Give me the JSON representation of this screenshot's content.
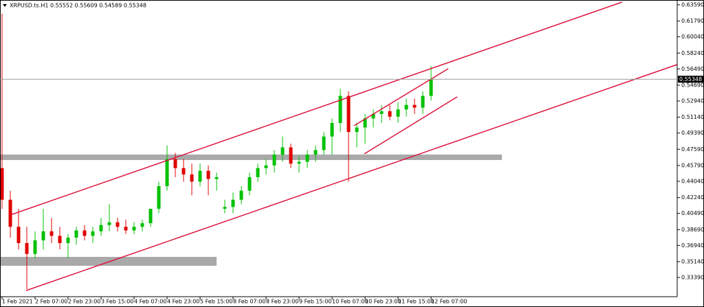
{
  "chart_data": {
    "type": "candlestick",
    "title": "XRPUSD.ts.H1  0.55552 0.55609 0.54589 0.55348",
    "categories": [
      "1 Feb 2021",
      null,
      null,
      null,
      "2 Feb 07:00",
      null,
      null,
      null,
      "2 Feb 23:00",
      null,
      null,
      null,
      "3 Feb 15:00",
      null,
      null,
      null,
      "4 Feb 07:00",
      null,
      null,
      null,
      "4 Feb 23:00",
      null,
      null,
      null,
      "5 Feb 15:00",
      null,
      null,
      null,
      "8 Feb 07:00",
      null,
      null,
      null,
      "8 Feb 23:00",
      null,
      null,
      null,
      "9 Feb 15:00",
      null,
      null,
      null,
      "10 Feb 07:00",
      null,
      null,
      null,
      "10 Feb 23:00",
      null,
      null,
      null,
      "11 Feb 15:00",
      null,
      null,
      null,
      "12 Feb 07:00"
    ],
    "open": [
      0.455,
      0.42,
      0.39,
      0.372,
      0.36,
      0.375,
      0.385,
      0.38,
      0.372,
      0.378,
      0.386,
      0.38,
      0.385,
      0.392,
      0.395,
      0.39,
      0.386,
      0.39,
      0.394,
      0.41,
      0.435,
      0.465,
      0.455,
      0.448,
      0.44,
      0.452,
      0.443,
      0.41,
      0.412,
      0.42,
      0.43,
      0.445,
      0.455,
      0.458,
      0.47,
      0.478,
      0.46,
      0.462,
      0.47,
      0.475,
      0.49,
      0.505,
      0.535,
      0.495,
      0.5,
      0.51,
      0.515,
      0.518,
      0.512,
      0.52,
      0.525,
      0.522,
      0.535
    ],
    "high": [
      0.626,
      0.43,
      0.41,
      0.39,
      0.385,
      0.41,
      0.4,
      0.39,
      0.382,
      0.39,
      0.392,
      0.39,
      0.4,
      0.415,
      0.4,
      0.398,
      0.395,
      0.398,
      0.41,
      0.44,
      0.48,
      0.472,
      0.465,
      0.46,
      0.46,
      0.458,
      0.45,
      0.42,
      0.428,
      0.435,
      0.45,
      0.46,
      0.465,
      0.475,
      0.49,
      0.482,
      0.468,
      0.475,
      0.48,
      0.495,
      0.51,
      0.543,
      0.54,
      0.505,
      0.515,
      0.52,
      0.525,
      0.525,
      0.528,
      0.532,
      0.532,
      0.54,
      0.568
    ],
    "low": [
      0.41,
      0.378,
      0.365,
      0.321,
      0.355,
      0.365,
      0.372,
      0.365,
      0.355,
      0.37,
      0.375,
      0.372,
      0.38,
      0.385,
      0.385,
      0.382,
      0.382,
      0.385,
      0.39,
      0.405,
      0.43,
      0.445,
      0.44,
      0.425,
      0.435,
      0.425,
      0.43,
      0.405,
      0.405,
      0.415,
      0.425,
      0.44,
      0.448,
      0.45,
      0.462,
      0.455,
      0.45,
      0.455,
      0.462,
      0.47,
      0.47,
      0.495,
      0.44,
      0.478,
      0.482,
      0.5,
      0.505,
      0.508,
      0.505,
      0.512,
      0.515,
      0.515,
      0.53
    ],
    "close": [
      0.42,
      0.39,
      0.372,
      0.36,
      0.375,
      0.385,
      0.38,
      0.372,
      0.378,
      0.386,
      0.38,
      0.385,
      0.392,
      0.395,
      0.39,
      0.386,
      0.39,
      0.394,
      0.41,
      0.435,
      0.465,
      0.455,
      0.448,
      0.44,
      0.452,
      0.443,
      0.445,
      0.412,
      0.42,
      0.43,
      0.445,
      0.455,
      0.458,
      0.47,
      0.478,
      0.46,
      0.462,
      0.47,
      0.475,
      0.49,
      0.505,
      0.535,
      0.495,
      0.5,
      0.51,
      0.515,
      0.518,
      0.512,
      0.52,
      0.525,
      0.522,
      0.535,
      0.55348
    ],
    "up_color": "#00c000",
    "down_color": "#e00000",
    "current_price": 0.55348,
    "ylim": [
      0.3126,
      0.6412
    ],
    "yticks": [
      {
        "value": 0.6359,
        "label": "0.63590"
      },
      {
        "value": 0.6179,
        "label": "0.61790"
      },
      {
        "value": 0.6004,
        "label": "0.60040"
      },
      {
        "value": 0.5824,
        "label": "0.58240"
      },
      {
        "value": 0.5649,
        "label": "0.56490"
      },
      {
        "value": 0.5469,
        "label": "0.54690"
      },
      {
        "value": 0.5294,
        "label": "0.52940"
      },
      {
        "value": 0.5114,
        "label": "0.51140"
      },
      {
        "value": 0.4939,
        "label": "0.49390"
      },
      {
        "value": 0.4759,
        "label": "0.47590"
      },
      {
        "value": 0.4579,
        "label": "0.45790"
      },
      {
        "value": 0.4404,
        "label": "0.44040"
      },
      {
        "value": 0.4224,
        "label": "0.42240"
      },
      {
        "value": 0.4049,
        "label": "0.40490"
      },
      {
        "value": 0.3869,
        "label": "0.38690"
      },
      {
        "value": 0.3694,
        "label": "0.36940"
      },
      {
        "value": 0.3514,
        "label": "0.35140"
      },
      {
        "value": 0.3339,
        "label": "0.33390"
      }
    ]
  }
}
